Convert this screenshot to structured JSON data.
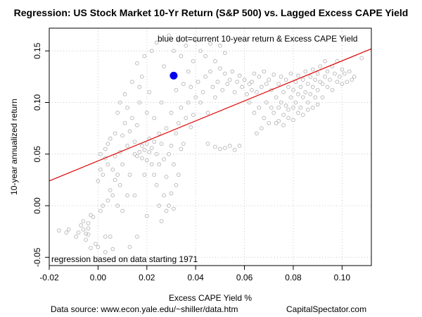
{
  "chart_data": {
    "type": "scatter",
    "title": "Regression: US Stock Market 10-Yr Return (S&P 500) vs. Lagged Excess CAPE Yield",
    "xlabel": "Excess CAPE Yield %",
    "ylabel": "10-year annualized return",
    "xlim": [
      -0.02,
      0.112
    ],
    "ylim": [
      -0.058,
      0.172
    ],
    "x_ticks": [
      -0.02,
      0.0,
      0.02,
      0.04,
      0.06,
      0.08,
      0.1
    ],
    "x_tick_labels": [
      "-0.02",
      "0.00",
      "0.02",
      "0.04",
      "0.06",
      "0.08",
      "0.10"
    ],
    "y_ticks": [
      -0.05,
      0.0,
      0.05,
      0.1,
      0.15
    ],
    "y_tick_labels": [
      "-0.05",
      "0.00",
      "0.05",
      "0.10",
      "0.15"
    ],
    "grid": true,
    "annotations": {
      "top": "blue dot=current 10-year return & Excess CAPE Yield",
      "bottom": "regression based on data starting 1971"
    },
    "regression_line": {
      "x0": -0.02,
      "y0": 0.024,
      "x1": 0.112,
      "y1": 0.152
    },
    "current_point": {
      "x": 0.031,
      "y": 0.126
    },
    "series": [
      {
        "points": [
          [
            -0.016,
            -0.024
          ],
          [
            -0.013,
            -0.026
          ],
          [
            -0.012,
            -0.023
          ],
          [
            -0.009,
            -0.03
          ],
          [
            -0.008,
            -0.026
          ],
          [
            -0.007,
            -0.019
          ],
          [
            -0.006,
            -0.023
          ],
          [
            -0.006,
            -0.015
          ],
          [
            -0.005,
            -0.027
          ],
          [
            -0.005,
            -0.033
          ],
          [
            -0.004,
            -0.022
          ],
          [
            -0.004,
            -0.017
          ],
          [
            -0.004,
            -0.028
          ],
          [
            -0.003,
            -0.009
          ],
          [
            -0.003,
            -0.041
          ],
          [
            -0.002,
            -0.011
          ],
          [
            -0.001,
            -0.037
          ],
          [
            0.0,
            -0.04
          ],
          [
            0.001,
            -0.005
          ],
          [
            0.0,
            0.024
          ],
          [
            0.001,
            0.035
          ],
          [
            0.001,
            0.05
          ],
          [
            0.002,
            0.0
          ],
          [
            0.002,
            0.03
          ],
          [
            0.003,
            0.046
          ],
          [
            0.003,
            0.055
          ],
          [
            0.003,
            -0.03
          ],
          [
            0.003,
            -0.045
          ],
          [
            0.004,
            0.005
          ],
          [
            0.004,
            0.04
          ],
          [
            0.004,
            0.06
          ],
          [
            0.005,
            0.015
          ],
          [
            0.005,
            0.065
          ],
          [
            0.005,
            -0.03
          ],
          [
            0.006,
            0.01
          ],
          [
            0.006,
            0.035
          ],
          [
            0.006,
            -0.042
          ],
          [
            0.007,
            0.025
          ],
          [
            0.007,
            0.048
          ],
          [
            0.007,
            0.07
          ],
          [
            0.008,
            0.0
          ],
          [
            0.008,
            0.03
          ],
          [
            0.008,
            0.09
          ],
          [
            0.009,
            0.02
          ],
          [
            0.009,
            0.052
          ],
          [
            0.009,
            0.1
          ],
          [
            0.01,
            -0.005
          ],
          [
            0.01,
            0.04
          ],
          [
            0.01,
            0.068
          ],
          [
            0.011,
            0.08
          ],
          [
            0.011,
            0.108
          ],
          [
            0.012,
            0.01
          ],
          [
            0.012,
            0.058
          ],
          [
            0.012,
            0.095
          ],
          [
            0.013,
            -0.04
          ],
          [
            0.013,
            0.03
          ],
          [
            0.013,
            0.072
          ],
          [
            0.014,
            0.085
          ],
          [
            0.014,
            0.12
          ],
          [
            0.015,
            0.01
          ],
          [
            0.015,
            0.05
          ],
          [
            0.015,
            0.062
          ],
          [
            0.016,
            -0.03
          ],
          [
            0.016,
            0.048
          ],
          [
            0.016,
            0.078
          ],
          [
            0.016,
            0.138
          ],
          [
            0.017,
            0.052
          ],
          [
            0.017,
            0.1
          ],
          [
            0.017,
            0.115
          ],
          [
            0.018,
            0.046
          ],
          [
            0.018,
            0.058
          ],
          [
            0.018,
            0.125
          ],
          [
            0.019,
            0.03
          ],
          [
            0.019,
            0.054
          ],
          [
            0.019,
            0.145
          ],
          [
            0.02,
            -0.01
          ],
          [
            0.02,
            0.044
          ],
          [
            0.02,
            0.06
          ],
          [
            0.02,
            0.09
          ],
          [
            0.021,
            0.052
          ],
          [
            0.021,
            0.065
          ],
          [
            0.021,
            0.11
          ],
          [
            0.022,
            0.056
          ],
          [
            0.022,
            0.04
          ],
          [
            0.022,
            0.15
          ],
          [
            0.023,
            0.03
          ],
          [
            0.023,
            0.062
          ],
          [
            0.023,
            0.085
          ],
          [
            0.024,
            0.02
          ],
          [
            0.024,
            0.05
          ],
          [
            0.024,
            0.158
          ],
          [
            0.025,
            0.0
          ],
          [
            0.025,
            0.04
          ],
          [
            0.025,
            0.07
          ],
          [
            0.026,
            -0.015
          ],
          [
            0.026,
            0.06
          ],
          [
            0.026,
            0.1
          ],
          [
            0.027,
            0.01
          ],
          [
            0.027,
            0.045
          ],
          [
            0.027,
            0.135
          ],
          [
            0.028,
            -0.005
          ],
          [
            0.028,
            0.028
          ],
          [
            0.028,
            0.075
          ],
          [
            0.029,
            0.0
          ],
          [
            0.029,
            0.05
          ],
          [
            0.029,
            0.165
          ],
          [
            0.03,
            0.012
          ],
          [
            0.03,
            0.058
          ],
          [
            0.03,
            0.09
          ],
          [
            0.031,
            -0.003
          ],
          [
            0.031,
            0.04
          ],
          [
            0.031,
            0.15
          ],
          [
            0.032,
            0.02
          ],
          [
            0.032,
            0.07
          ],
          [
            0.032,
            0.112
          ],
          [
            0.033,
            0.03
          ],
          [
            0.033,
            0.08
          ],
          [
            0.033,
            0.16
          ],
          [
            0.034,
            0.055
          ],
          [
            0.034,
            0.095
          ],
          [
            0.034,
            0.145
          ],
          [
            0.035,
            0.06
          ],
          [
            0.035,
            0.118
          ],
          [
            0.036,
            0.085
          ],
          [
            0.036,
            0.155
          ],
          [
            0.037,
            0.1
          ],
          [
            0.037,
            0.13
          ],
          [
            0.038,
            0.076
          ],
          [
            0.038,
            0.115
          ],
          [
            0.039,
            0.088
          ],
          [
            0.039,
            0.14
          ],
          [
            0.04,
            0.105
          ],
          [
            0.04,
            0.16
          ],
          [
            0.041,
            0.12
          ],
          [
            0.042,
            0.1
          ],
          [
            0.042,
            0.15
          ],
          [
            0.043,
            0.11
          ],
          [
            0.044,
            0.125
          ],
          [
            0.044,
            0.145
          ],
          [
            0.045,
            0.09
          ],
          [
            0.045,
            0.06
          ],
          [
            0.046,
            0.13
          ],
          [
            0.046,
            0.157
          ],
          [
            0.047,
            0.115
          ],
          [
            0.048,
            0.105
          ],
          [
            0.048,
            0.14
          ],
          [
            0.049,
            0.12
          ],
          [
            0.05,
            0.133
          ],
          [
            0.05,
            0.155
          ],
          [
            0.051,
            0.112
          ],
          [
            0.052,
            0.128
          ],
          [
            0.052,
            0.148
          ],
          [
            0.053,
            0.118
          ],
          [
            0.054,
            0.122
          ],
          [
            0.054,
            0.058
          ],
          [
            0.055,
            0.13
          ],
          [
            0.056,
            0.11
          ],
          [
            0.057,
            0.12
          ],
          [
            0.058,
            0.126
          ],
          [
            0.059,
            0.115
          ],
          [
            0.06,
            0.122
          ],
          [
            0.061,
            0.108
          ],
          [
            0.062,
            0.118
          ],
          [
            0.063,
            0.112
          ],
          [
            0.048,
            0.057
          ],
          [
            0.05,
            0.055
          ],
          [
            0.052,
            0.056
          ],
          [
            0.056,
            0.054
          ],
          [
            0.058,
            0.058
          ],
          [
            0.062,
            0.1
          ],
          [
            0.063,
            0.12
          ],
          [
            0.064,
            0.09
          ],
          [
            0.064,
            0.128
          ],
          [
            0.065,
            0.07
          ],
          [
            0.065,
            0.11
          ],
          [
            0.066,
            0.095
          ],
          [
            0.066,
            0.125
          ],
          [
            0.067,
            0.075
          ],
          [
            0.067,
            0.115
          ],
          [
            0.068,
            0.085
          ],
          [
            0.068,
            0.13
          ],
          [
            0.069,
            0.1
          ],
          [
            0.069,
            0.118
          ],
          [
            0.07,
            0.08
          ],
          [
            0.07,
            0.122
          ],
          [
            0.071,
            0.095
          ],
          [
            0.071,
            0.112
          ],
          [
            0.072,
            0.09
          ],
          [
            0.072,
            0.127
          ],
          [
            0.073,
            0.105
          ],
          [
            0.073,
            0.08
          ],
          [
            0.074,
            0.118
          ],
          [
            0.074,
            0.095
          ],
          [
            0.075,
            0.125
          ],
          [
            0.075,
            0.1
          ],
          [
            0.076,
            0.11
          ],
          [
            0.076,
            0.088
          ],
          [
            0.077,
            0.122
          ],
          [
            0.077,
            0.097
          ],
          [
            0.078,
            0.115
          ],
          [
            0.078,
            0.093
          ],
          [
            0.079,
            0.128
          ],
          [
            0.079,
            0.105
          ],
          [
            0.08,
            0.112
          ],
          [
            0.08,
            0.095
          ],
          [
            0.081,
            0.12
          ],
          [
            0.081,
            0.1
          ],
          [
            0.082,
            0.126
          ],
          [
            0.082,
            0.108
          ],
          [
            0.083,
            0.115
          ],
          [
            0.083,
            0.095
          ],
          [
            0.084,
            0.122
          ],
          [
            0.084,
            0.105
          ],
          [
            0.085,
            0.13
          ],
          [
            0.085,
            0.11
          ],
          [
            0.086,
            0.118
          ],
          [
            0.086,
            0.1
          ],
          [
            0.087,
            0.125
          ],
          [
            0.087,
            0.108
          ],
          [
            0.088,
            0.115
          ],
          [
            0.088,
            0.132
          ],
          [
            0.089,
            0.122
          ],
          [
            0.089,
            0.105
          ],
          [
            0.09,
            0.128
          ],
          [
            0.09,
            0.112
          ],
          [
            0.091,
            0.12
          ],
          [
            0.091,
            0.135
          ],
          [
            0.092,
            0.118
          ],
          [
            0.092,
            0.105
          ],
          [
            0.093,
            0.125
          ],
          [
            0.093,
            0.14
          ],
          [
            0.094,
            0.115
          ],
          [
            0.094,
            0.13
          ],
          [
            0.095,
            0.122
          ],
          [
            0.096,
            0.135
          ],
          [
            0.096,
            0.112
          ],
          [
            0.097,
            0.128
          ],
          [
            0.098,
            0.12
          ],
          [
            0.098,
            0.14
          ],
          [
            0.099,
            0.125
          ],
          [
            0.1,
            0.132
          ],
          [
            0.1,
            0.118
          ],
          [
            0.101,
            0.128
          ],
          [
            0.102,
            0.12
          ],
          [
            0.103,
            0.13
          ],
          [
            0.104,
            0.122
          ],
          [
            0.105,
            0.125
          ],
          [
            0.108,
            0.143
          ],
          [
            0.074,
            0.082
          ],
          [
            0.076,
            0.078
          ],
          [
            0.078,
            0.085
          ],
          [
            0.08,
            0.083
          ],
          [
            0.082,
            0.09
          ],
          [
            0.084,
            0.088
          ],
          [
            0.086,
            0.093
          ],
          [
            0.088,
            0.095
          ],
          [
            0.09,
            0.098
          ]
        ]
      }
    ]
  },
  "footer": {
    "source": "Data source: www.econ.yale.edu/~shiller/data.htm",
    "credit": "CapitalSpectator.com"
  },
  "colors": {
    "points": "#b5b5b5",
    "regression": "#dd0000",
    "current": "#0000ee",
    "grid": "#c8c8c8"
  }
}
